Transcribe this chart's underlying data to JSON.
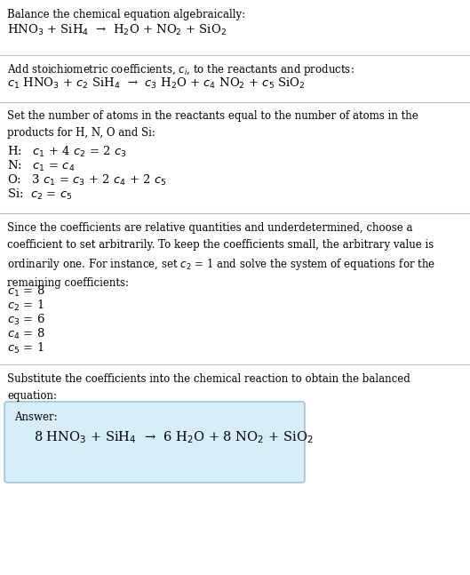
{
  "bg_color": "#ffffff",
  "text_color": "#000000",
  "section1_title": "Balance the chemical equation algebraically:",
  "section1_eq": "HNO$_3$ + SiH$_4$  →  H$_2$O + NO$_2$ + SiO$_2$",
  "section2_title": "Add stoichiometric coefficients, $c_i$, to the reactants and products:",
  "section2_eq": "$c_1$ HNO$_3$ + $c_2$ SiH$_4$  →  $c_3$ H$_2$O + $c_4$ NO$_2$ + $c_5$ SiO$_2$",
  "section3_title": "Set the number of atoms in the reactants equal to the number of atoms in the\nproducts for H, N, O and Si:",
  "section3_lines": [
    "H:   $c_1$ + 4 $c_2$ = 2 $c_3$",
    "N:   $c_1$ = $c_4$",
    "O:   3 $c_1$ = $c_3$ + 2 $c_4$ + 2 $c_5$",
    "Si:  $c_2$ = $c_5$"
  ],
  "section4_title": "Since the coefficients are relative quantities and underdetermined, choose a\ncoefficient to set arbitrarily. To keep the coefficients small, the arbitrary value is\nordinarily one. For instance, set $c_2$ = 1 and solve the system of equations for the\nremaining coefficients:",
  "section4_lines": [
    "$c_1$ = 8",
    "$c_2$ = 1",
    "$c_3$ = 6",
    "$c_4$ = 8",
    "$c_5$ = 1"
  ],
  "section5_title": "Substitute the coefficients into the chemical reaction to obtain the balanced\nequation:",
  "answer_label": "Answer:",
  "answer_eq": "8 HNO$_3$ + SiH$_4$  →  6 H$_2$O + 8 NO$_2$ + SiO$_2$",
  "answer_box_color": "#d6eef8",
  "answer_box_border": "#90bcd4",
  "divider_color": "#bbbbbb",
  "fs_small": 8.5,
  "fs_eq": 9.5,
  "fs_ans": 10.5
}
